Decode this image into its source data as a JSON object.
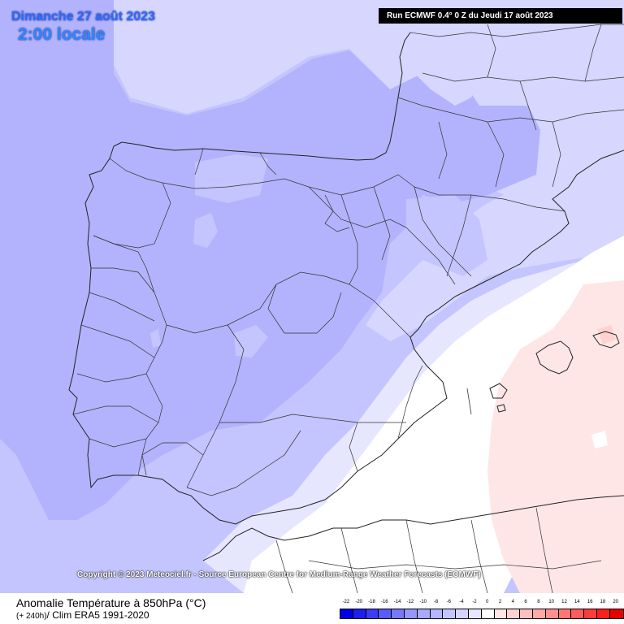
{
  "header": {
    "date": "Dimanche 27 août 2023",
    "local_time": "2:00 locale",
    "run": "Run ECMWF 0.4° 0 Z du Jeudi 17 août 2023"
  },
  "copyright": "Copyright © 2023 Meteociel.fr - Source European Centre for Medium-Range Weather Forecasts (ECMWF)",
  "footer": {
    "title": "Anomalie Température à 850hPa (°C)",
    "subtitle_lead": "(+ 240h)",
    "subtitle_rest": "/ Clim ERA5 1991-2020"
  },
  "legend": {
    "labels": [
      "-22",
      "-20",
      "-18",
      "-16",
      "-14",
      "-12",
      "-10",
      "-8",
      "-6",
      "-4",
      "-2",
      "0",
      "2",
      "4",
      "6",
      "8",
      "10",
      "12",
      "14",
      "16",
      "18",
      "20"
    ],
    "colors": [
      "#0000e6",
      "#1e1ef0",
      "#3c3cf5",
      "#5a5af8",
      "#7878fa",
      "#9696fb",
      "#a8a8fc",
      "#b6b6fd",
      "#c4c4fe",
      "#d4d4fe",
      "#e6e6ff",
      "#ffffff",
      "#ffe6e6",
      "#ffd2d2",
      "#ffbebe",
      "#ffa8a8",
      "#ff9090",
      "#ff7676",
      "#ff5c5c",
      "#ff3c3c",
      "#ff1e1e",
      "#e60000"
    ]
  },
  "colors": {
    "anomaly_minus_8": "#b3b3fd",
    "anomaly_minus_6": "#c3c3fe",
    "anomaly_minus_4": "#d6d6ff",
    "anomaly_minus_2": "#e6e6ff",
    "anomaly_zero": "#ffffff",
    "anomaly_plus_2": "#ffe6e6",
    "border_line": "#222222"
  }
}
